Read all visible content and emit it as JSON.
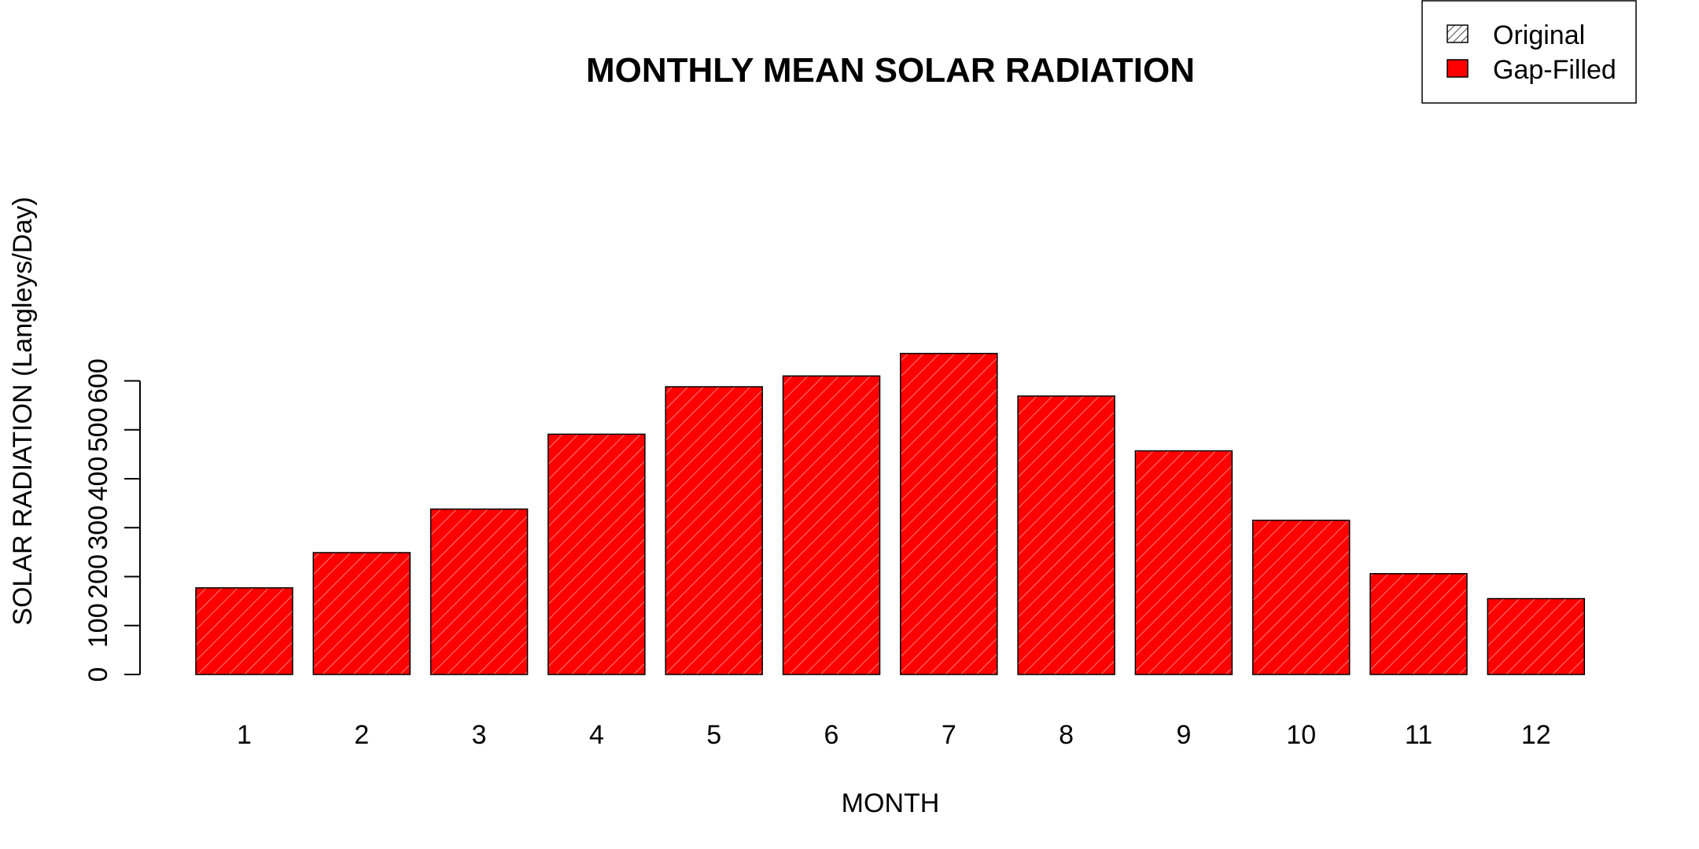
{
  "chart_data": {
    "type": "bar",
    "title": "MONTHLY MEAN SOLAR RADIATION",
    "xlabel": "MONTH",
    "ylabel": "SOLAR RADIATION (Langleys/Day)",
    "categories": [
      "1",
      "2",
      "3",
      "4",
      "5",
      "6",
      "7",
      "8",
      "9",
      "10",
      "11",
      "12"
    ],
    "series": [
      {
        "name": "Gap-Filled",
        "values": [
          177,
          249,
          338,
          491,
          588,
          610,
          656,
          569,
          457,
          315,
          206,
          155
        ],
        "color": "#ff0000"
      }
    ],
    "yticks": [
      0,
      100,
      200,
      300,
      400,
      500,
      600
    ],
    "ylim": [
      0,
      656
    ],
    "grid": false,
    "legend": {
      "position": "top-right",
      "entries": [
        {
          "label": "Original",
          "style": "hatched",
          "color": "#ffffff"
        },
        {
          "label": "Gap-Filled",
          "style": "solid",
          "color": "#ff0000"
        }
      ]
    }
  }
}
